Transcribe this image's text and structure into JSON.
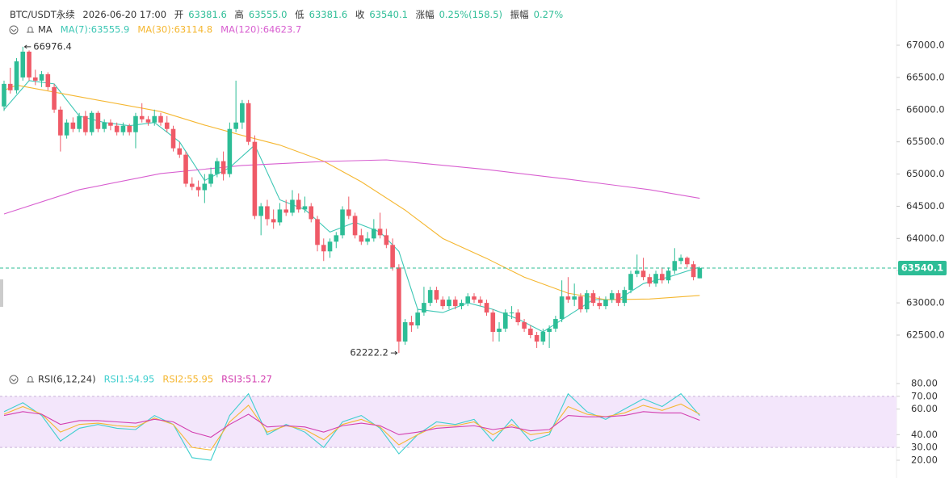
{
  "header": {
    "symbol": "BTC/USDT永续",
    "time": "2026-06-20 17:00",
    "open_label": "开",
    "open": "63381.6",
    "high_label": "高",
    "high": "63555.0",
    "low_label": "低",
    "low": "63381.6",
    "close_label": "收",
    "close": "63540.1",
    "change_label": "涨幅",
    "change": "0.25%(158.5)",
    "amplitude_label": "振幅",
    "amplitude": "0.27%"
  },
  "chart_data": [
    {
      "type": "candlestick",
      "legend_title": "MA",
      "up_color": "#2dbd96",
      "down_color": "#ef5a67",
      "ylim": [
        62000,
        67300
      ],
      "yticks": [
        {
          "value": 62500,
          "label": "62500.0"
        },
        {
          "value": 63000,
          "label": "63000.0"
        },
        {
          "value": 63500,
          "label": "63500.0"
        },
        {
          "value": 64000,
          "label": "64000.0"
        },
        {
          "value": 64500,
          "label": "64500.0"
        },
        {
          "value": 65000,
          "label": "65000.0"
        },
        {
          "value": 65500,
          "label": "65500.0"
        },
        {
          "value": 66000,
          "label": "66000.0"
        },
        {
          "value": 66500,
          "label": "66500.0"
        },
        {
          "value": 67000,
          "label": "67000.0"
        }
      ],
      "candles": [
        [
          66050,
          66450,
          65980,
          66400
        ],
        [
          66400,
          66650,
          66250,
          66300
        ],
        [
          66300,
          66800,
          66250,
          66750
        ],
        [
          66500,
          66976.4,
          66450,
          66900
        ],
        [
          66900,
          66920,
          66450,
          66500
        ],
        [
          66500,
          66620,
          66380,
          66450
        ],
        [
          66450,
          66600,
          66350,
          66550
        ],
        [
          66550,
          66580,
          66300,
          66350
        ],
        [
          66350,
          66400,
          65950,
          66000
        ],
        [
          66000,
          66050,
          65350,
          65600
        ],
        [
          65600,
          65850,
          65550,
          65800
        ],
        [
          65800,
          65880,
          65650,
          65700
        ],
        [
          65700,
          65950,
          65650,
          65900
        ],
        [
          65900,
          65980,
          65600,
          65650
        ],
        [
          65650,
          65980,
          65600,
          65950
        ],
        [
          65950,
          65980,
          65650,
          65700
        ],
        [
          65700,
          65850,
          65650,
          65800
        ],
        [
          65800,
          65850,
          65680,
          65750
        ],
        [
          65750,
          65800,
          65600,
          65650
        ],
        [
          65650,
          65800,
          65600,
          65750
        ],
        [
          65750,
          65780,
          65600,
          65650
        ],
        [
          65650,
          65950,
          65400,
          65900
        ],
        [
          65900,
          66100,
          65800,
          65850
        ],
        [
          65850,
          65900,
          65750,
          65800
        ],
        [
          65800,
          66000,
          65750,
          65900
        ],
        [
          65900,
          65950,
          65750,
          65800
        ],
        [
          65800,
          65900,
          65650,
          65700
        ],
        [
          65700,
          65750,
          65350,
          65400
        ],
        [
          65400,
          65500,
          65250,
          65300
        ],
        [
          65300,
          65350,
          64800,
          64850
        ],
        [
          64850,
          64950,
          64750,
          64800
        ],
        [
          64800,
          64900,
          64650,
          64750
        ],
        [
          64750,
          65000,
          64550,
          64850
        ],
        [
          64850,
          65100,
          64800,
          65000
        ],
        [
          65000,
          65250,
          64950,
          65200
        ],
        [
          65200,
          65350,
          64900,
          65000
        ],
        [
          65000,
          65800,
          64950,
          65700
        ],
        [
          65700,
          66450,
          65650,
          65800
        ],
        [
          65800,
          66150,
          65700,
          66100
        ],
        [
          66100,
          66150,
          65450,
          65500
        ],
        [
          65500,
          65600,
          64300,
          64350
        ],
        [
          64350,
          64550,
          64050,
          64500
        ],
        [
          64500,
          64600,
          64200,
          64300
        ],
        [
          64300,
          64450,
          64150,
          64250
        ],
        [
          64250,
          64550,
          64200,
          64450
        ],
        [
          64450,
          64600,
          64350,
          64400
        ],
        [
          64400,
          64750,
          64350,
          64600
        ],
        [
          64600,
          64700,
          64400,
          64450
        ],
        [
          64450,
          64650,
          64400,
          64500
        ],
        [
          64500,
          64550,
          64250,
          64300
        ],
        [
          64300,
          64350,
          63800,
          63900
        ],
        [
          63900,
          64000,
          63650,
          63800
        ],
        [
          63800,
          64000,
          63700,
          63950
        ],
        [
          63950,
          64100,
          63850,
          64050
        ],
        [
          64050,
          64500,
          64000,
          64450
        ],
        [
          64450,
          64650,
          64300,
          64350
        ],
        [
          64350,
          64400,
          64000,
          64050
        ],
        [
          64050,
          64150,
          63900,
          63950
        ],
        [
          63950,
          64100,
          63900,
          64000
        ],
        [
          64000,
          64300,
          63950,
          64150
        ],
        [
          64150,
          64400,
          64000,
          64050
        ],
        [
          64050,
          64150,
          63850,
          63900
        ],
        [
          63900,
          64000,
          63500,
          63550
        ],
        [
          63550,
          63600,
          62222.2,
          62400
        ],
        [
          62400,
          62750,
          62350,
          62700
        ],
        [
          62700,
          62800,
          62550,
          62650
        ],
        [
          62650,
          62900,
          62600,
          62850
        ],
        [
          62850,
          63250,
          62800,
          63000
        ],
        [
          63000,
          63250,
          62950,
          63200
        ],
        [
          63200,
          63250,
          63000,
          63050
        ],
        [
          63050,
          63100,
          62900,
          62950
        ],
        [
          62950,
          63100,
          62900,
          63050
        ],
        [
          63050,
          63100,
          62900,
          62950
        ],
        [
          62950,
          63050,
          62900,
          63000
        ],
        [
          63000,
          63150,
          62950,
          63100
        ],
        [
          63100,
          63150,
          63000,
          63050
        ],
        [
          63050,
          63100,
          62950,
          63000
        ],
        [
          63000,
          63050,
          62800,
          62850
        ],
        [
          62850,
          62900,
          62400,
          62550
        ],
        [
          62550,
          62700,
          62400,
          62600
        ],
        [
          62600,
          62900,
          62550,
          62850
        ],
        [
          62850,
          62950,
          62750,
          62850
        ],
        [
          62850,
          62900,
          62650,
          62700
        ],
        [
          62700,
          62750,
          62550,
          62600
        ],
        [
          62600,
          62650,
          62450,
          62500
        ],
        [
          62500,
          62550,
          62300,
          62400
        ],
        [
          62400,
          62600,
          62350,
          62550
        ],
        [
          62550,
          62650,
          62300,
          62600
        ],
        [
          62600,
          62800,
          62550,
          62750
        ],
        [
          62750,
          63350,
          62700,
          63100
        ],
        [
          63100,
          63400,
          63000,
          63050
        ],
        [
          63050,
          63300,
          62950,
          63100
        ],
        [
          63100,
          63150,
          62850,
          62900
        ],
        [
          62900,
          63200,
          62850,
          63150
        ],
        [
          63150,
          63200,
          62950,
          63000
        ],
        [
          63000,
          63100,
          62900,
          62950
        ],
        [
          62950,
          63100,
          62900,
          63050
        ],
        [
          63050,
          63200,
          63000,
          63150
        ],
        [
          63150,
          63200,
          62950,
          63000
        ],
        [
          63000,
          63250,
          62950,
          63200
        ],
        [
          63200,
          63500,
          63150,
          63450
        ],
        [
          63450,
          63750,
          63400,
          63500
        ],
        [
          63500,
          63700,
          63350,
          63400
        ],
        [
          63400,
          63450,
          63250,
          63300
        ],
        [
          63300,
          63500,
          63250,
          63450
        ],
        [
          63450,
          63550,
          63300,
          63350
        ],
        [
          63350,
          63550,
          63300,
          63500
        ],
        [
          63500,
          63850,
          63450,
          63650
        ],
        [
          63650,
          63750,
          63600,
          63700
        ],
        [
          63700,
          63720,
          63550,
          63600
        ],
        [
          63600,
          63650,
          63350,
          63400
        ],
        [
          63381.6,
          63555,
          63381.6,
          63540.1
        ]
      ],
      "series": [
        {
          "name": "MA(7):63555.9",
          "color": "#3ec7b5",
          "x": [
            0,
            4,
            8,
            12,
            16,
            20,
            24,
            28,
            32,
            36,
            40,
            44,
            48,
            52,
            56,
            60,
            63,
            66,
            70,
            74,
            78,
            82,
            86,
            90,
            94,
            98,
            102,
            106,
            111
          ],
          "values": [
            66000,
            66450,
            66400,
            65900,
            65800,
            65750,
            65800,
            65500,
            64900,
            65100,
            65450,
            64600,
            64450,
            64100,
            64250,
            64100,
            63800,
            62900,
            62850,
            63000,
            62900,
            62750,
            62550,
            62800,
            63050,
            63050,
            63300,
            63400,
            63555.9
          ]
        },
        {
          "name": "MA(30):63114.8",
          "color": "#f5b731",
          "x": [
            0,
            2,
            12,
            25,
            32,
            38,
            44,
            51,
            57,
            64,
            70,
            77,
            83,
            90,
            96,
            103,
            111
          ],
          "values": [
            66300,
            66380,
            66200,
            65970,
            65760,
            65600,
            65450,
            65200,
            64880,
            64440,
            64000,
            63690,
            63400,
            63150,
            63050,
            63060,
            63114.8
          ]
        },
        {
          "name": "MA(120):64623.7",
          "color": "#d85fd0",
          "x": [
            0,
            12,
            25,
            38,
            51,
            61,
            77,
            90,
            103,
            111
          ],
          "values": [
            64380,
            64757,
            65008,
            65133,
            65195,
            65220,
            65070,
            64920,
            64757,
            64623.7
          ]
        }
      ]
    },
    {
      "type": "line",
      "legend_title": "RSI(6,12,24)",
      "band": [
        30,
        70
      ],
      "band_color": "#f3e6fb",
      "ylim": [
        13,
        85
      ],
      "yticks": [
        {
          "value": 20,
          "label": "20.00"
        },
        {
          "value": 30,
          "label": "30.00"
        },
        {
          "value": 40,
          "label": "40.00"
        },
        {
          "value": 60,
          "label": "60.00"
        },
        {
          "value": 70,
          "label": "70.00"
        },
        {
          "value": 80,
          "label": "80.00"
        }
      ],
      "x": [
        0,
        3,
        6,
        9,
        12,
        15,
        18,
        21,
        24,
        27,
        30,
        33,
        36,
        39,
        42,
        45,
        48,
        51,
        54,
        57,
        60,
        63,
        66,
        69,
        72,
        75,
        78,
        81,
        84,
        87,
        90,
        93,
        96,
        99,
        102,
        105,
        108,
        111
      ],
      "series": [
        {
          "name": "RSI1:54.95",
          "color": "#3fcfcf",
          "values": [
            58,
            65,
            55,
            35,
            45,
            48,
            45,
            44,
            55,
            48,
            22,
            20,
            55,
            72,
            40,
            48,
            42,
            30,
            50,
            55,
            45,
            25,
            40,
            50,
            48,
            52,
            35,
            52,
            35,
            40,
            72,
            58,
            52,
            60,
            68,
            62,
            72,
            54.95
          ]
        },
        {
          "name": "RSI2:55.95",
          "color": "#f5b731",
          "values": [
            56,
            62,
            56,
            42,
            48,
            49,
            47,
            46,
            53,
            48,
            30,
            28,
            50,
            63,
            42,
            47,
            44,
            36,
            48,
            52,
            46,
            32,
            40,
            47,
            47,
            50,
            40,
            48,
            40,
            42,
            62,
            56,
            54,
            57,
            63,
            59,
            64,
            55.95
          ]
        },
        {
          "name": "RSI3:51.27",
          "color": "#d33fb0",
          "values": [
            55,
            58,
            56,
            48,
            51,
            51,
            50,
            49,
            52,
            50,
            42,
            38,
            48,
            56,
            46,
            47,
            46,
            42,
            47,
            49,
            47,
            40,
            42,
            45,
            46,
            47,
            44,
            46,
            43,
            44,
            55,
            54,
            54,
            55,
            58,
            57,
            57,
            51.27
          ]
        }
      ]
    }
  ]
}
